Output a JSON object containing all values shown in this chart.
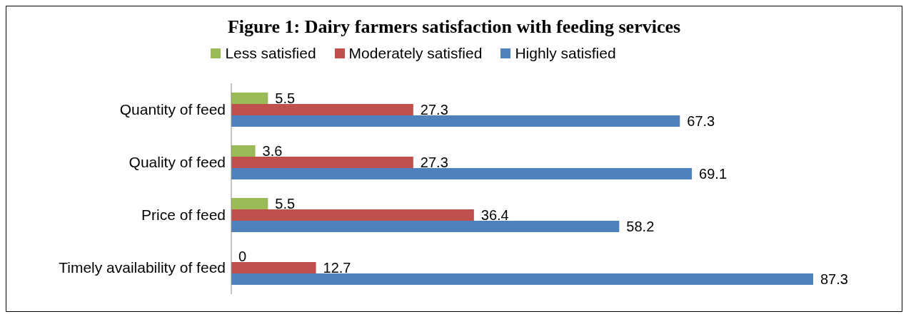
{
  "chart_data": {
    "type": "bar",
    "orientation": "horizontal",
    "title": "Figure 1: Dairy farmers satisfaction with feeding services",
    "categories": [
      "Quantity of feed",
      "Quality of feed",
      "Price of feed",
      "Timely availability of feed"
    ],
    "series": [
      {
        "name": "Less satisfied",
        "color": "#9bbb59",
        "values": [
          5.5,
          3.6,
          5.5,
          0
        ]
      },
      {
        "name": "Moderately satisfied",
        "color": "#c0504d",
        "values": [
          27.3,
          27.3,
          36.4,
          12.7
        ]
      },
      {
        "name": "Highly satisfied",
        "color": "#4f81bd",
        "values": [
          67.3,
          69.1,
          58.2,
          87.3
        ]
      }
    ],
    "data_labels": true,
    "legend": "top",
    "grid": false
  }
}
